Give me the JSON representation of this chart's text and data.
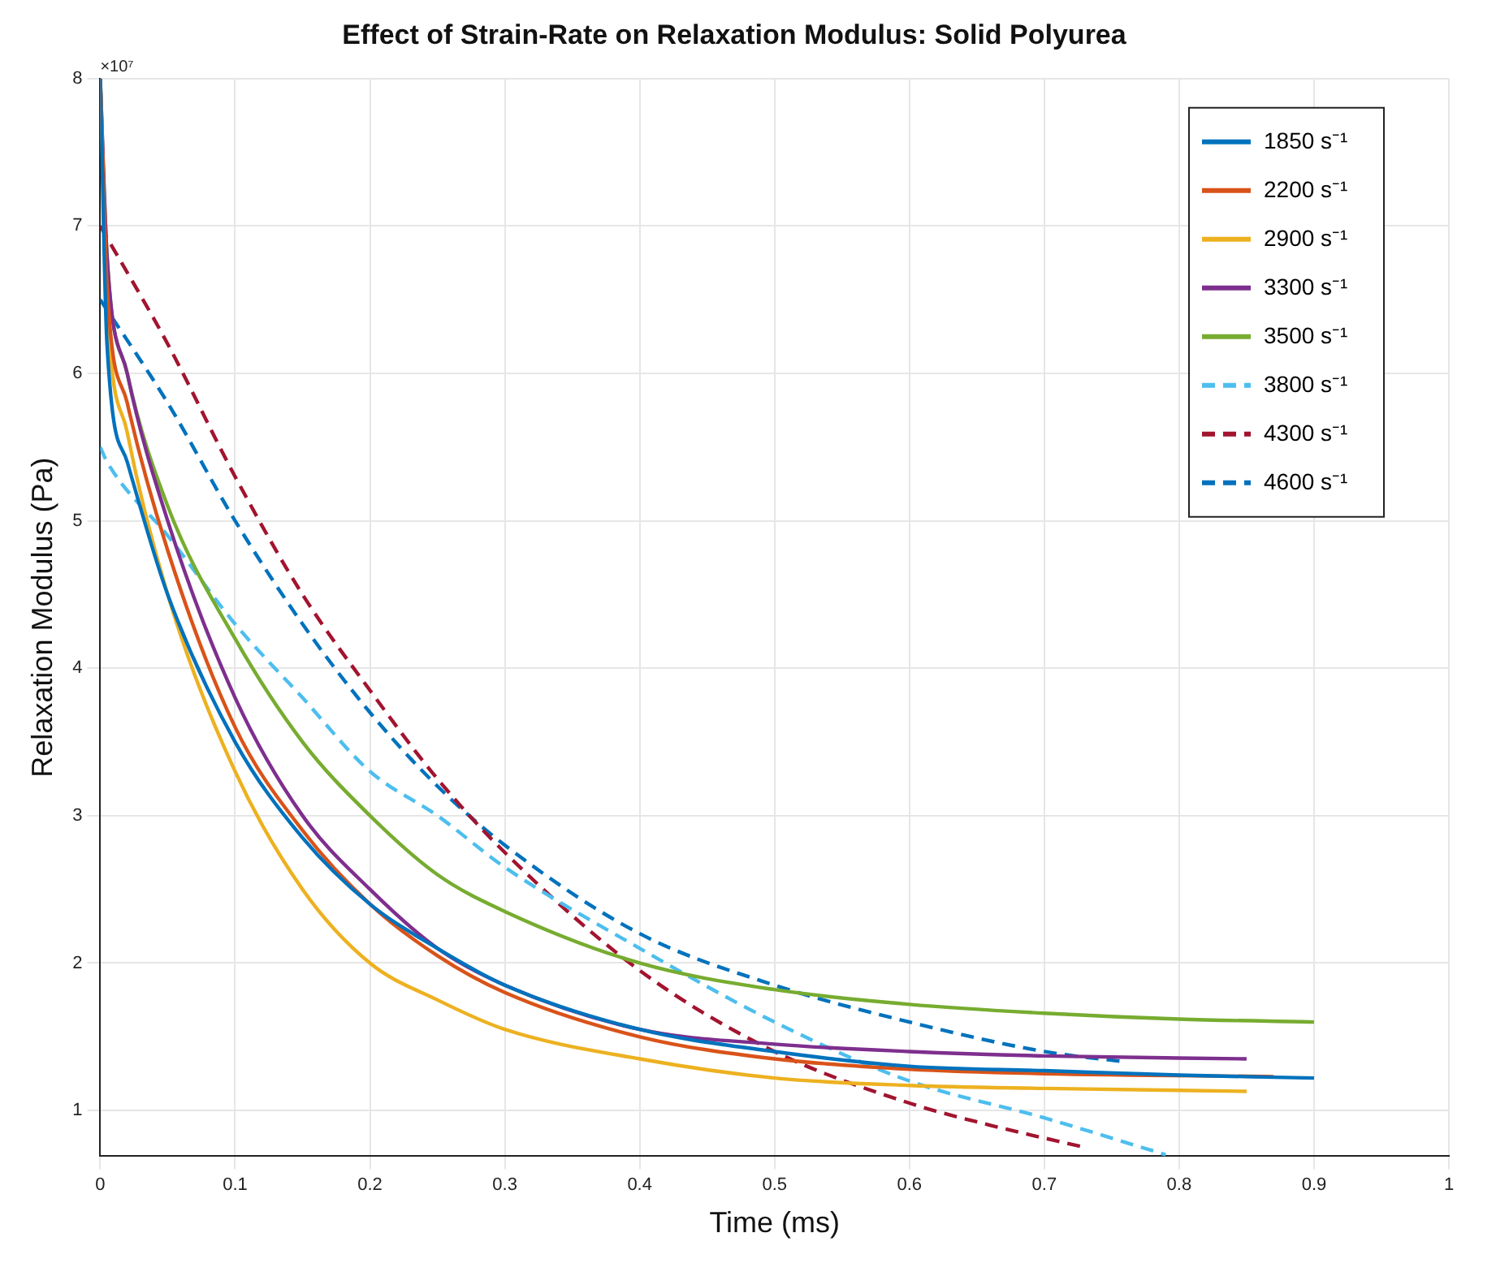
{
  "chart_data": {
    "type": "line",
    "title": "Effect of Strain-Rate on Relaxation Modulus: Solid Polyurea",
    "xlabel": "Time (ms)",
    "ylabel": "Relaxation Modulus (Pa)",
    "annotations": [
      "×10⁷"
    ],
    "xlim": [
      0,
      1
    ],
    "xticks": [
      0,
      0.1,
      0.2,
      0.3,
      0.4,
      0.5,
      0.6,
      0.7,
      0.8,
      0.9,
      1
    ],
    "ylim": [
      0.69,
      8
    ],
    "yticks": [
      1,
      2,
      3,
      4,
      5,
      6,
      7,
      8
    ],
    "grid": true,
    "legend": "top right",
    "marker": "none",
    "series": [
      {
        "name": "1850 s⁻¹",
        "color": "#0072bd",
        "line_style": "solid",
        "x": [
          0,
          0.005,
          0.02,
          0.05,
          0.1,
          0.15,
          0.2,
          0.25,
          0.3,
          0.4,
          0.5,
          0.6,
          0.7,
          0.8,
          0.9
        ],
        "values": [
          8,
          6.2,
          5.4,
          4.5,
          3.5,
          2.85,
          2.4,
          2.1,
          1.85,
          1.55,
          1.4,
          1.3,
          1.27,
          1.24,
          1.22
        ]
      },
      {
        "name": "2200 s⁻¹",
        "color": "#d95319",
        "line_style": "solid",
        "x": [
          0,
          0.005,
          0.02,
          0.05,
          0.1,
          0.15,
          0.2,
          0.25,
          0.3,
          0.4,
          0.5,
          0.6,
          0.7,
          0.87
        ],
        "values": [
          8,
          6.6,
          5.8,
          4.8,
          3.6,
          2.9,
          2.4,
          2.05,
          1.8,
          1.5,
          1.35,
          1.28,
          1.25,
          1.23
        ]
      },
      {
        "name": "2900 s⁻¹",
        "color": "#edb120",
        "line_style": "solid",
        "x": [
          0,
          0.005,
          0.02,
          0.05,
          0.1,
          0.15,
          0.2,
          0.25,
          0.3,
          0.4,
          0.5,
          0.6,
          0.7,
          0.85
        ],
        "values": [
          8,
          6.5,
          5.6,
          4.5,
          3.3,
          2.5,
          2.0,
          1.75,
          1.55,
          1.35,
          1.22,
          1.17,
          1.15,
          1.13
        ]
      },
      {
        "name": "3300 s⁻¹",
        "color": "#7e2f8e",
        "line_style": "solid",
        "x": [
          0,
          0.005,
          0.02,
          0.05,
          0.1,
          0.15,
          0.2,
          0.25,
          0.3,
          0.4,
          0.5,
          0.6,
          0.7,
          0.85
        ],
        "values": [
          8,
          6.8,
          6.0,
          5.0,
          3.8,
          3.0,
          2.5,
          2.1,
          1.85,
          1.55,
          1.45,
          1.4,
          1.37,
          1.35
        ]
      },
      {
        "name": "3500 s⁻¹",
        "color": "#77ac30",
        "line_style": "solid",
        "x": [
          0,
          0.005,
          0.02,
          0.05,
          0.1,
          0.15,
          0.2,
          0.25,
          0.3,
          0.4,
          0.5,
          0.6,
          0.7,
          0.8,
          0.9
        ],
        "values": [
          8,
          6.8,
          6.0,
          5.1,
          4.2,
          3.5,
          3.0,
          2.6,
          2.35,
          2.0,
          1.82,
          1.72,
          1.66,
          1.62,
          1.6
        ]
      },
      {
        "name": "3800 s⁻¹",
        "color": "#4dbeee",
        "line_style": "dashed",
        "x": [
          0,
          0.005,
          0.05,
          0.1,
          0.15,
          0.2,
          0.25,
          0.3,
          0.4,
          0.5,
          0.6,
          0.7,
          0.79
        ],
        "values": [
          5.5,
          5.4,
          4.9,
          4.3,
          3.8,
          3.3,
          3.0,
          2.65,
          2.1,
          1.6,
          1.2,
          0.95,
          0.7
        ]
      },
      {
        "name": "4300 s⁻¹",
        "color": "#a2142f",
        "line_style": "dashed",
        "x": [
          0,
          0.05,
          0.1,
          0.15,
          0.2,
          0.25,
          0.3,
          0.4,
          0.5,
          0.6,
          0.66,
          0.73
        ],
        "values": [
          7.0,
          6.2,
          5.3,
          4.5,
          3.85,
          3.25,
          2.75,
          1.95,
          1.4,
          1.05,
          0.9,
          0.75
        ]
      },
      {
        "name": "4600 s⁻¹",
        "color": "#0072bd",
        "line_style": "dashed",
        "x": [
          0,
          0.05,
          0.1,
          0.15,
          0.2,
          0.25,
          0.3,
          0.4,
          0.5,
          0.6,
          0.7,
          0.76
        ],
        "values": [
          6.5,
          5.8,
          5.0,
          4.3,
          3.7,
          3.2,
          2.8,
          2.2,
          1.85,
          1.6,
          1.4,
          1.33
        ]
      }
    ]
  }
}
